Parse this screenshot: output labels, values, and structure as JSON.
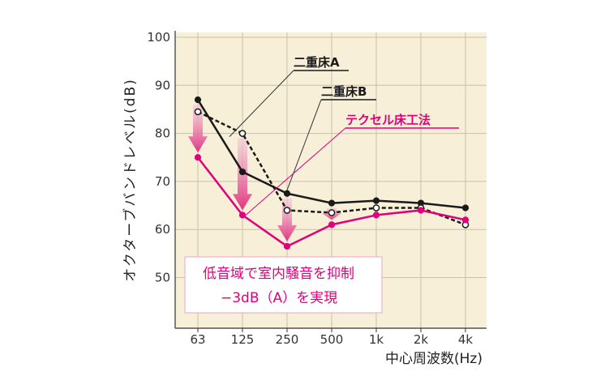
{
  "chart_data": {
    "type": "line",
    "x_categories": [
      "63",
      "125",
      "250",
      "500",
      "1k",
      "2k",
      "4k"
    ],
    "xlabel": "中心周波数(Hz)",
    "ylabel": "オクターブバンドレベル(dB)",
    "y_ticks": [
      50,
      60,
      70,
      80,
      90,
      100
    ],
    "ylim": [
      40,
      100
    ],
    "grid": true,
    "series": [
      {
        "name": "二重床A",
        "color": "#1a1a1a",
        "style": "solid",
        "marker": "filled",
        "values": [
          87,
          72,
          67.5,
          65.5,
          66,
          65.5,
          64.5
        ]
      },
      {
        "name": "二重床B",
        "color": "#1a1a1a",
        "style": "dashed",
        "marker": "open",
        "values": [
          84.5,
          80,
          64,
          63.5,
          64.5,
          64.5,
          61
        ]
      },
      {
        "name": "テクセル床工法",
        "color": "#e0007a",
        "style": "solid",
        "marker": "filled",
        "values": [
          75,
          63,
          56.5,
          61,
          63,
          64,
          62
        ]
      }
    ],
    "annotation": {
      "line1": "低音域で室内騒音を抑制",
      "line2": "−3dB（A）を実現"
    },
    "colors": {
      "plot_bg": "#f7efd7",
      "grid": "#c9c0a8",
      "accent": "#e0007a",
      "arrow": "#e8559c"
    }
  }
}
